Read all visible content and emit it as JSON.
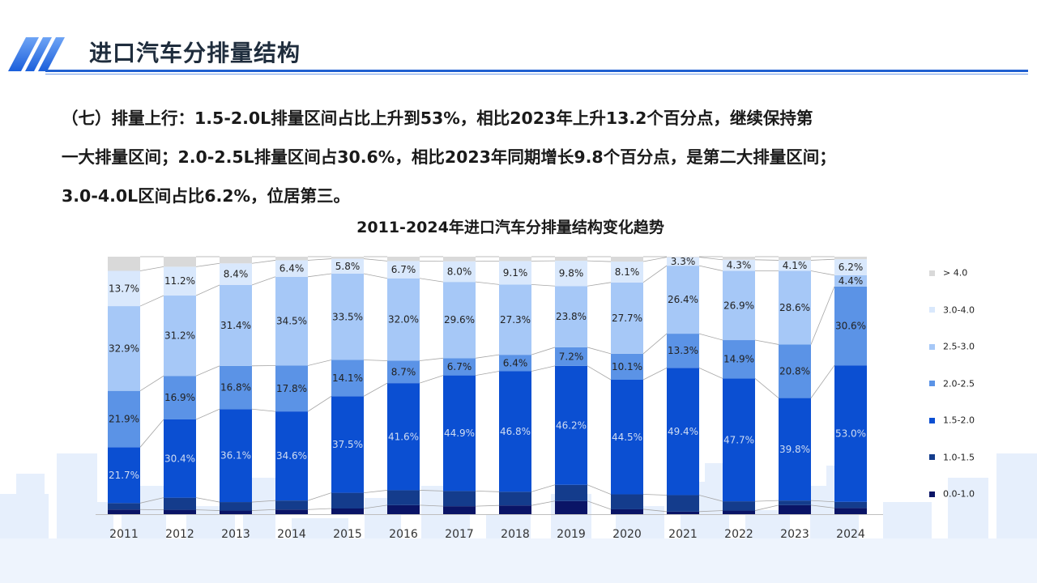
{
  "page": {
    "title": "进口汽车分排量结构",
    "summary_lines": [
      "（七）排量上行：1.5-2.0L排量区间占比上升到53%，相比2023年上升13.2个百分点，继续保持第",
      "一大排量区间；2.0-2.5L排量区间占30.6%，相比2023年同期增长9.8个百分点，是第二大排量区间；",
      "3.0-4.0L区间占比6.2%，位居第三。"
    ]
  },
  "colors": {
    "accent": "#1f5fd0",
    "skyline": "#e3edfb",
    "series": {
      "0.0-1.0": "#0a1466",
      "1.0-1.5": "#143c8c",
      "1.5-2.0": "#0b4fd2",
      "2.0-2.5": "#5b93e6",
      "2.5-3.0": "#a6c8f7",
      "3.0-4.0": "#d9e8fc",
      "> 4.0": "#d9d9d9"
    }
  },
  "chart_data": {
    "type": "bar",
    "stacked": true,
    "percent_stacked": true,
    "title": "2011-2024年进口汽车分排量结构变化趋势",
    "xlabel": "",
    "ylabel": "",
    "ylim": [
      0,
      100
    ],
    "grid": false,
    "legend_position": "right",
    "categories": [
      "2011",
      "2012",
      "2013",
      "2014",
      "2015",
      "2016",
      "2017",
      "2018",
      "2019",
      "2020",
      "2021",
      "2022",
      "2023",
      "2024"
    ],
    "series": [
      {
        "name": "0.0-1.0",
        "values": [
          1.8,
          1.7,
          1.4,
          1.8,
          2.2,
          3.5,
          3.1,
          3.4,
          5.1,
          1.9,
          1.0,
          1.4,
          3.5,
          2.4
        ]
      },
      {
        "name": "1.0-1.5",
        "values": [
          2.5,
          4.7,
          3.3,
          3.5,
          6.1,
          5.8,
          5.9,
          5.3,
          6.3,
          5.8,
          6.4,
          3.6,
          1.8,
          2.4
        ],
        "label_values": [
          null,
          null,
          null,
          null,
          null,
          null,
          null,
          null,
          null,
          null,
          null,
          null,
          null,
          null
        ]
      },
      {
        "name": "1.5-2.0",
        "values": [
          21.7,
          30.4,
          36.1,
          34.6,
          37.5,
          41.6,
          44.9,
          46.8,
          46.2,
          44.5,
          49.4,
          47.7,
          39.8,
          53.0
        ]
      },
      {
        "name": "2.0-2.5",
        "values": [
          21.9,
          16.9,
          16.8,
          17.8,
          14.1,
          8.7,
          6.7,
          6.4,
          7.2,
          10.1,
          13.3,
          14.9,
          20.8,
          30.6
        ]
      },
      {
        "name": "2.5-3.0",
        "values": [
          32.9,
          31.2,
          31.4,
          34.5,
          33.5,
          32.0,
          29.6,
          27.3,
          23.8,
          27.7,
          26.4,
          26.9,
          28.6,
          4.4
        ]
      },
      {
        "name": "3.0-4.0",
        "values": [
          13.7,
          11.2,
          8.4,
          6.4,
          5.8,
          6.7,
          8.0,
          9.1,
          9.8,
          8.1,
          3.3,
          4.3,
          4.1,
          6.2
        ]
      },
      {
        "name": "> 4.0",
        "values": [
          5.5,
          3.9,
          2.6,
          1.4,
          0.8,
          1.7,
          1.8,
          1.7,
          1.6,
          1.9,
          0.2,
          1.2,
          1.4,
          1.0
        ]
      }
    ],
    "labeled_series": [
      "1.5-2.0",
      "2.0-2.5",
      "2.5-3.0",
      "3.0-4.0"
    ],
    "label_suffix": "%",
    "legend_order": [
      "> 4.0",
      "3.0-4.0",
      "2.5-3.0",
      "2.0-2.5",
      "1.5-2.0",
      "1.0-1.5",
      "0.0-1.0"
    ]
  }
}
